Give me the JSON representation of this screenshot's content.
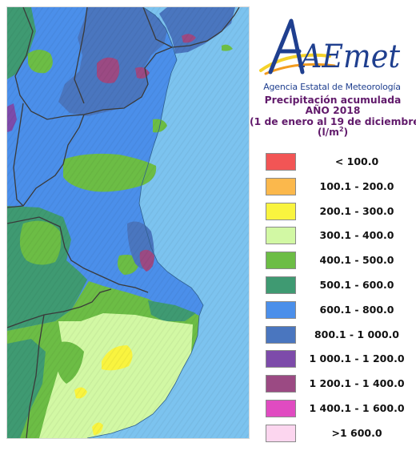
{
  "logo": {
    "text": "AEmet",
    "subtitle": "Agencia Estatal de Meteorología"
  },
  "title": {
    "line1": "Precipitación acumulada",
    "line2": "AÑO 2018",
    "line3": "(1 de enero al 19 de diciembre)",
    "unit": "(l/m",
    "unit_sup": "2",
    "unit_close": ")"
  },
  "legend": [
    {
      "label": "< 100.0",
      "color": "#f25555"
    },
    {
      "label": "100.1 - 200.0",
      "color": "#fbb84c"
    },
    {
      "label": "200.1 - 300.0",
      "color": "#f9f43f"
    },
    {
      "label": "300.1 - 400.0",
      "color": "#d2f8a4"
    },
    {
      "label": "400.1 - 500.0",
      "color": "#6cbd45"
    },
    {
      "label": "500.1 - 600.0",
      "color": "#3f9a72"
    },
    {
      "label": "600.1 - 800.0",
      "color": "#4b8fea"
    },
    {
      "label": "800.1 - 1 000.0",
      "color": "#4a76bf"
    },
    {
      "label": "1 000.1 - 1 200.0",
      "color": "#7d4baa"
    },
    {
      "label": "1 200.1 - 1 400.0",
      "color": "#9b4a83"
    },
    {
      "label": "1 400.1 - 1 600.0",
      "color": "#e04bc1"
    },
    {
      "label": ">1 600.0",
      "color": "#fcd6ef"
    }
  ],
  "colors": {
    "sea": "#7cc3ef",
    "border": "#3a3a3a",
    "title": "#611a6b",
    "logo_blue": "#1f3f8f",
    "logo_orange": "#f29c1f",
    "logo_yellow": "#f5d22a"
  }
}
